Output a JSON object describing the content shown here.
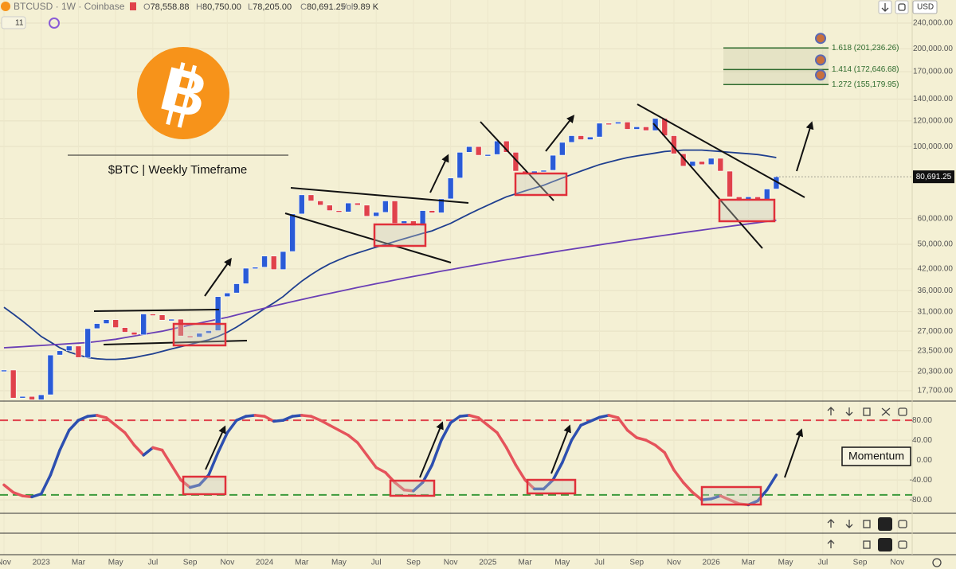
{
  "header": {
    "symbol": "BTCUSD · 1W · Coinbase",
    "indicator_count": "11",
    "currency": "USD",
    "ohlc": [
      {
        "label": "O",
        "value": "78,558.88"
      },
      {
        "label": "H",
        "value": "80,750.00"
      },
      {
        "label": "L",
        "value": "78,205.00"
      },
      {
        "label": "C",
        "value": "80,691.25"
      },
      {
        "label": "Vol",
        "value": "9.89 K"
      }
    ]
  },
  "annotations": {
    "logo_letter": "B",
    "caption": "$BTC | Weekly Timeframe",
    "momentum_label": "Momentum"
  },
  "chart_data": {
    "type": "candlestick",
    "log": true,
    "grid": true,
    "up_color": "#2a5bd7",
    "down_color": "#e0424b",
    "categories": [
      "Nov",
      null,
      null,
      null,
      "2023",
      null,
      null,
      null,
      "Mar",
      null,
      null,
      null,
      "May",
      null,
      null,
      null,
      "Jul",
      null,
      null,
      null,
      "Sep",
      null,
      null,
      null,
      "Nov",
      null,
      null,
      null,
      "2024",
      null,
      null,
      null,
      "Mar",
      null,
      null,
      null,
      "May",
      null,
      null,
      null,
      "Jul",
      null,
      null,
      null,
      "Sep",
      null,
      null,
      null,
      "Nov",
      null,
      null,
      null,
      "2025",
      null,
      null,
      null,
      "Mar",
      null,
      null,
      null,
      "May",
      null,
      null,
      null,
      "Jul",
      null,
      null,
      null,
      "Sep",
      null,
      null,
      null,
      "Nov",
      null,
      null,
      null,
      "2026",
      null,
      null,
      null,
      "Mar",
      null,
      null,
      null,
      "May",
      null,
      null,
      null,
      "Jul",
      null,
      null,
      null,
      "Sep",
      null,
      null,
      null,
      "Nov"
    ],
    "values": [
      20500,
      16800,
      17000,
      16600,
      17200,
      22800,
      23500,
      24300,
      22400,
      27500,
      28500,
      29300,
      27700,
      26800,
      26300,
      30500,
      30300,
      29200,
      29400,
      26100,
      25900,
      26600,
      27100,
      34500,
      35400,
      37800,
      42200,
      42500,
      46000,
      41800,
      47500,
      62000,
      71000,
      68000,
      66000,
      63500,
      62900,
      67000,
      66000,
      61000,
      62700,
      68000,
      58000,
      59000,
      57000,
      63500,
      62500,
      69000,
      80000,
      96000,
      100000,
      94000,
      94500,
      104000,
      96000,
      84000,
      82500,
      84000,
      84500,
      94000,
      103000,
      108000,
      105000,
      107000,
      118000,
      117500,
      119000,
      113000,
      115000,
      112000,
      122000,
      108000,
      95000,
      87000,
      90000,
      88000,
      92000,
      84000,
      70000,
      68000,
      70000,
      68500,
      74000,
      80691.25,
      null,
      null,
      null,
      null,
      null,
      null,
      null,
      null,
      null,
      null,
      null,
      null,
      null
    ],
    "last_price_label": "80,691.25",
    "overlays": [
      {
        "color": "#1f3f8f",
        "values": [
          32000,
          30500,
          29000,
          27500,
          26000,
          25000,
          24000,
          23300,
          22800,
          22400,
          22200,
          22100,
          22100,
          22200,
          22400,
          22700,
          23000,
          23400,
          23800,
          24200,
          24600,
          25000,
          25400,
          26000,
          26800,
          27800,
          29000,
          30300,
          31700,
          33000,
          34500,
          36500,
          38500,
          40300,
          42000,
          43500,
          44800,
          46000,
          47000,
          48000,
          49000,
          50000,
          51000,
          52000,
          53000,
          54000,
          55000,
          56500,
          58000,
          60000,
          62000,
          64000,
          66000,
          68000,
          70000,
          71500,
          73000,
          74500,
          76000,
          78000,
          80000,
          82000,
          84000,
          86000,
          88000,
          89500,
          91000,
          92500,
          93500,
          94500,
          95500,
          96500,
          97000,
          97500,
          97500,
          97500,
          97000,
          96500,
          96000,
          95500,
          95000,
          94500,
          93500,
          92500,
          null,
          null,
          null,
          null,
          null,
          null,
          null,
          null,
          null,
          null,
          null,
          null,
          null
        ]
      },
      {
        "color": "#6a3fb5",
        "values": [
          24000,
          24100,
          24200,
          24300,
          24400,
          24500,
          24600,
          24700,
          24800,
          24900,
          25100,
          25300,
          25500,
          25800,
          26100,
          26400,
          26700,
          27000,
          27400,
          27800,
          28200,
          28600,
          29000,
          29400,
          29800,
          30300,
          30800,
          31300,
          31800,
          32300,
          32800,
          33300,
          33800,
          34300,
          34800,
          35300,
          35800,
          36300,
          36800,
          37300,
          37800,
          38300,
          38800,
          39300,
          39800,
          40300,
          40800,
          41300,
          41800,
          42300,
          42800,
          43300,
          43800,
          44300,
          44800,
          45300,
          45800,
          46300,
          46800,
          47300,
          47800,
          48300,
          48800,
          49300,
          49800,
          50300,
          50800,
          51300,
          51800,
          52300,
          52800,
          53300,
          53800,
          54300,
          54800,
          55300,
          55800,
          56300,
          56800,
          57300,
          57800,
          58300,
          58800,
          59300,
          null,
          null,
          null,
          null,
          null,
          null,
          null,
          null,
          null,
          null,
          null,
          null,
          null
        ]
      }
    ],
    "ylim": [
      16540,
      252500
    ],
    "yticks": [
      {
        "value": 240000,
        "label": "240,000.00"
      },
      {
        "value": 200000,
        "label": "200,000.00"
      },
      {
        "value": 170000,
        "label": "170,000.00"
      },
      {
        "value": 140000,
        "label": "140,000.00"
      },
      {
        "value": 120000,
        "label": "120,000.00"
      },
      {
        "value": 100000,
        "label": "100,000.00"
      },
      {
        "value": 60000,
        "label": "60,000.00"
      },
      {
        "value": 50000,
        "label": "50,000.00"
      },
      {
        "value": 42000,
        "label": "42,000.00"
      },
      {
        "value": 36000,
        "label": "36,000.00"
      },
      {
        "value": 31000,
        "label": "31,000.00"
      },
      {
        "value": 27000,
        "label": "27,000.00"
      },
      {
        "value": 23500,
        "label": "23,500.00"
      },
      {
        "value": 20300,
        "label": "20,300.00"
      },
      {
        "value": 17700,
        "label": "17,700.00"
      }
    ],
    "fib_levels": [
      {
        "value": 201236.26,
        "label": "1.618 (201,236.26)"
      },
      {
        "value": 172646.68,
        "label": "1.414 (172,646.68)"
      },
      {
        "value": 155179.95,
        "label": "1.272 (155,179.95)"
      }
    ],
    "fib_color": "#2e6b2e",
    "momentum": {
      "up_color": "#2d4fb0",
      "down_color": "#e5535b",
      "values": [
        -50,
        -65,
        -72,
        -74,
        -68,
        -30,
        20,
        60,
        80,
        88,
        90,
        85,
        70,
        55,
        30,
        10,
        25,
        20,
        -10,
        -40,
        -55,
        -50,
        -30,
        15,
        55,
        80,
        88,
        90,
        88,
        78,
        80,
        88,
        90,
        88,
        80,
        70,
        60,
        50,
        35,
        10,
        -15,
        -25,
        -45,
        -60,
        -62,
        -45,
        -10,
        40,
        75,
        88,
        90,
        85,
        70,
        55,
        25,
        -10,
        -40,
        -58,
        -58,
        -40,
        -5,
        40,
        70,
        78,
        86,
        90,
        85,
        60,
        45,
        40,
        30,
        15,
        -20,
        -45,
        -65,
        -80,
        -78,
        -72,
        -80,
        -88,
        -90,
        -82,
        -60,
        -30,
        null,
        null,
        null,
        null,
        null,
        null,
        null,
        null,
        null,
        null,
        null,
        null,
        null
      ],
      "ylim": [
        -107,
        117
      ],
      "yticks": [
        {
          "value": 80,
          "label": "80.00"
        },
        {
          "value": 40,
          "label": "40.00"
        },
        {
          "value": 0,
          "label": "0.00"
        },
        {
          "value": -40,
          "label": "-40.00"
        },
        {
          "value": -80,
          "label": "-80.00"
        }
      ],
      "levels": [
        {
          "value": 80,
          "color": "#e0424b"
        },
        {
          "value": -70,
          "color": "#3c9a3c"
        }
      ]
    }
  }
}
